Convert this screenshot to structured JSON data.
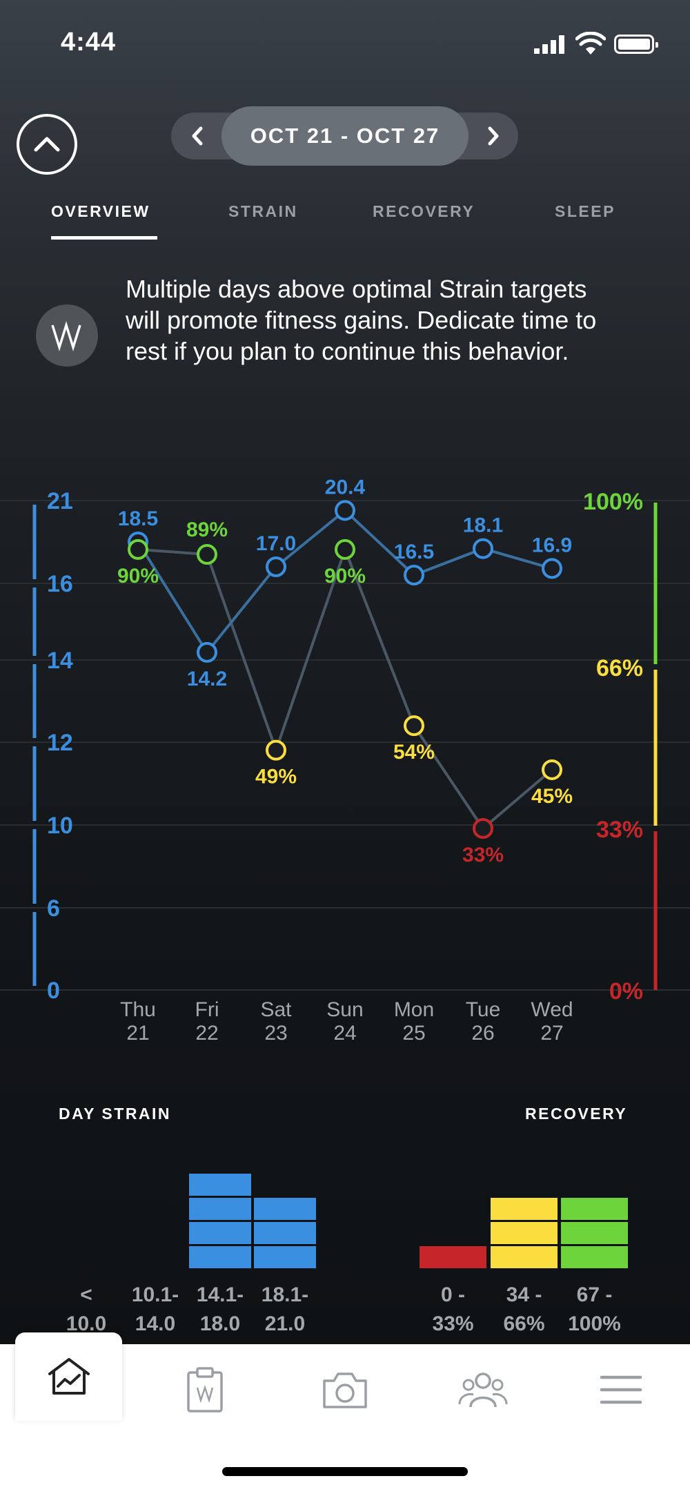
{
  "status_bar": {
    "time": "4:44"
  },
  "header": {
    "date_range": "OCT 21 - OCT 27"
  },
  "tabs": [
    {
      "label": "OVERVIEW",
      "active": true
    },
    {
      "label": "STRAIN",
      "active": false
    },
    {
      "label": "RECOVERY",
      "active": false
    },
    {
      "label": "SLEEP",
      "active": false
    }
  ],
  "insight": {
    "text": "Multiple days above optimal Strain targets will promote fitness gains. Dedicate time to rest if you plan to continue this behavior."
  },
  "colors": {
    "strain_blue": "#3b8fe0",
    "recovery_green": "#6ed43c",
    "recovery_yellow": "#fadd3f",
    "recovery_red": "#c6262a",
    "connector_gray": "#4a5866"
  },
  "chart_data": [
    {
      "type": "line",
      "title": "",
      "x": [
        "Thu 21",
        "Fri 22",
        "Sat 23",
        "Sun 24",
        "Mon 25",
        "Tue 26",
        "Wed 27"
      ],
      "x_days": [
        "Thu",
        "Fri",
        "Sat",
        "Sun",
        "Mon",
        "Tue",
        "Wed"
      ],
      "x_dates": [
        "21",
        "22",
        "23",
        "24",
        "25",
        "26",
        "27"
      ],
      "y_left_ticks": [
        "21",
        "16",
        "14",
        "12",
        "10",
        "6",
        "0"
      ],
      "y_right_ticks": [
        "100%",
        "66%",
        "33%",
        "0%"
      ],
      "series": [
        {
          "name": "",
          "axis": "left",
          "color": "#3b8fe0",
          "values": [
            18.5,
            14.2,
            17.0,
            20.4,
            16.5,
            18.1,
            16.9
          ],
          "labels": [
            "18.5",
            "14.2",
            "17.0",
            "20.4",
            "16.5",
            "18.1",
            "16.9"
          ]
        },
        {
          "name": "",
          "axis": "right",
          "values": [
            90,
            89,
            49,
            90,
            54,
            33,
            45
          ],
          "labels": [
            "90%",
            "89%",
            "49%",
            "90%",
            "54%",
            "33%",
            "45%"
          ]
        }
      ],
      "grid": true
    },
    {
      "type": "bar",
      "title": "DAY STRAIN",
      "categories": [
        "< 10.0",
        "10.1- 14.0",
        "14.1- 18.0",
        "18.1- 21.0"
      ],
      "category_lines": [
        [
          "<",
          "10.0"
        ],
        [
          "10.1-",
          "14.0"
        ],
        [
          "14.1-",
          "18.0"
        ],
        [
          "18.1-",
          "21.0"
        ]
      ],
      "values": [
        0,
        0,
        4,
        3
      ],
      "color": "#3b8fe0"
    },
    {
      "type": "bar",
      "title": "RECOVERY",
      "categories": [
        "0 - 33%",
        "34 - 66%",
        "67 - 100%"
      ],
      "category_lines": [
        [
          "0 -",
          "33%"
        ],
        [
          "34 -",
          "66%"
        ],
        [
          "67 -",
          "100%"
        ]
      ],
      "values": [
        1,
        3,
        3
      ],
      "colors": [
        "#c6262a",
        "#fadd3f",
        "#6ed43c"
      ]
    }
  ],
  "bottom_nav": {
    "icons": [
      "home-chart-icon",
      "journal-clipboard-icon",
      "camera-icon",
      "community-icon",
      "menu-icon"
    ]
  }
}
